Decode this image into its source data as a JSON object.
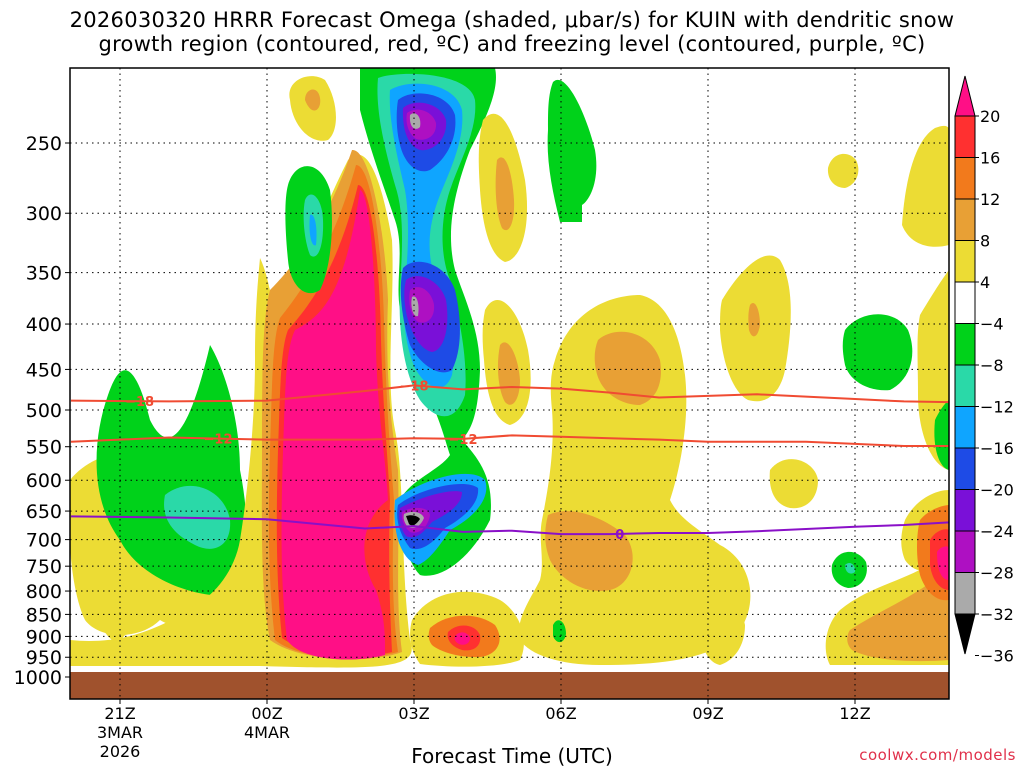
{
  "title_line1": "2026030320 HRRR Forecast Omega (shaded, μbar/s) for KUIN with dendritic snow",
  "title_line2": "growth region (contoured, red, ºC) and freezing level (contoured, purple, ºC)",
  "credit": "coolwx.com/models",
  "chart_data": {
    "type": "heatmap",
    "title": "2026030320 HRRR Forecast Omega (shaded, μbar/s) for KUIN with dendritic snow growth region (contoured, red, ºC) and freezing level (contoured, purple, ºC)",
    "xlabel": "Forecast Time (UTC)",
    "ylabel": "",
    "x_hours_range": [
      -5,
      13
    ],
    "x_ticks": [
      {
        "hour": -4,
        "lines": [
          "21Z",
          "3MAR",
          "2026"
        ]
      },
      {
        "hour": -1,
        "lines": [
          "00Z",
          "4MAR"
        ]
      },
      {
        "hour": 2,
        "lines": [
          "03Z"
        ]
      },
      {
        "hour": 5,
        "lines": [
          "06Z"
        ]
      },
      {
        "hour": 8,
        "lines": [
          "09Z"
        ]
      },
      {
        "hour": 11,
        "lines": [
          "12Z"
        ]
      }
    ],
    "y_pressure_range": [
      200,
      1000
    ],
    "y_ticks": [
      250,
      300,
      350,
      400,
      450,
      500,
      550,
      600,
      650,
      700,
      750,
      800,
      850,
      900,
      950,
      1000
    ],
    "colorbar": {
      "labels": [
        "20",
        "16",
        "12",
        "8",
        "4",
        "−4",
        "−8",
        "−12",
        "−16",
        "−20",
        "−24",
        "−28",
        "−32",
        "−36"
      ],
      "colors": [
        "#ff0f86",
        "#ff3030",
        "#f27a1c",
        "#e8a035",
        "#ecdc34",
        "#ffffff",
        "#00d21a",
        "#2ad9a8",
        "#0fa5ff",
        "#1e4be6",
        "#7a10d8",
        "#ae10c2",
        "#aaaaaa",
        "#000000"
      ]
    },
    "contours": [
      {
        "name": "-18",
        "color": "#f04b32",
        "label": "−18",
        "x": [
          -5,
          -3,
          -1,
          1,
          2,
          3,
          4,
          5,
          6,
          7,
          8,
          9,
          10,
          11,
          12,
          13
        ],
        "p": [
          488,
          489,
          488,
          476,
          469,
          474,
          471,
          473,
          478,
          484,
          482,
          480,
          483,
          486,
          489,
          490
        ],
        "labels_at": [
          -3.6,
          2.0
        ]
      },
      {
        "name": "-12",
        "color": "#f04b32",
        "label": "−12",
        "x": [
          -5,
          -3,
          -1,
          1,
          2,
          3,
          4,
          5,
          6,
          7,
          8,
          9,
          10,
          11,
          12,
          13
        ],
        "p": [
          543,
          537,
          540,
          540,
          538,
          539,
          534,
          536,
          538,
          540,
          543,
          543,
          543,
          546,
          549,
          549
        ],
        "labels_at": [
          -2.0,
          3.0
        ]
      },
      {
        "name": "0",
        "color": "#8a10c8",
        "label": "0",
        "x": [
          -5,
          -3,
          -1,
          1,
          2,
          3,
          4,
          5,
          6,
          7,
          8,
          9,
          10,
          11,
          12,
          13
        ],
        "p": [
          659,
          661,
          664,
          680,
          676,
          686,
          684,
          690,
          690,
          688,
          688,
          685,
          681,
          677,
          674,
          669
        ],
        "labels_at": [
          6.2
        ]
      }
    ]
  }
}
